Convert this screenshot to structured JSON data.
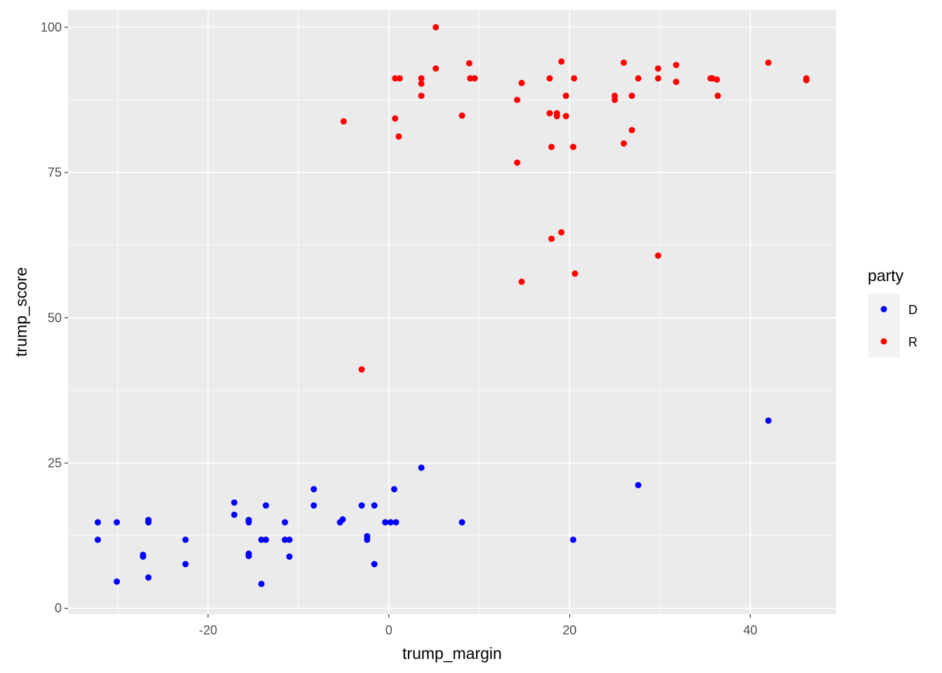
{
  "chart_data": {
    "type": "scatter",
    "xlabel": "trump_margin",
    "ylabel": "trump_score",
    "xlim": [
      -35.5,
      49.5
    ],
    "ylim": [
      -1,
      103
    ],
    "x_ticks": [
      -20,
      0,
      20,
      40
    ],
    "x_tick_labels": [
      "-20",
      "0",
      "20",
      "40"
    ],
    "y_ticks": [
      0,
      25,
      50,
      75,
      100
    ],
    "y_tick_labels": [
      "0",
      "25",
      "50",
      "75",
      "100"
    ],
    "grid": true,
    "legend": {
      "title": "party",
      "placement": "right",
      "entries": [
        {
          "label": "D",
          "color": "#0000ff"
        },
        {
          "label": "R",
          "color": "#ff0000"
        }
      ]
    },
    "colors": {
      "panel": "#ebebeb",
      "grid": "#ffffff",
      "D": "#0000ff",
      "R": "#ff0000"
    },
    "series": [
      {
        "name": "D",
        "color": "#0000ff",
        "points": [
          [
            -32.2,
            14.8
          ],
          [
            -32.2,
            11.8
          ],
          [
            -30.1,
            14.8
          ],
          [
            -30.1,
            4.6
          ],
          [
            -27.2,
            9.2
          ],
          [
            -27.2,
            8.9
          ],
          [
            -26.6,
            15.2
          ],
          [
            -26.6,
            14.8
          ],
          [
            -26.6,
            5.3
          ],
          [
            -22.5,
            11.8
          ],
          [
            -22.5,
            7.6
          ],
          [
            -17.1,
            18.2
          ],
          [
            -17.1,
            16.1
          ],
          [
            -15.5,
            15.2
          ],
          [
            -15.5,
            14.8
          ],
          [
            -15.5,
            9.4
          ],
          [
            -15.5,
            9.0
          ],
          [
            -14.1,
            11.8
          ],
          [
            -14.1,
            4.2
          ],
          [
            -13.6,
            17.7
          ],
          [
            -13.6,
            11.8
          ],
          [
            -11.5,
            14.8
          ],
          [
            -11.5,
            11.8
          ],
          [
            -11.0,
            11.8
          ],
          [
            -11.0,
            8.9
          ],
          [
            -8.3,
            20.5
          ],
          [
            -8.3,
            17.7
          ],
          [
            -5.4,
            14.8
          ],
          [
            -5.1,
            15.3
          ],
          [
            -3.0,
            17.7
          ],
          [
            -2.4,
            12.4
          ],
          [
            -2.4,
            11.8
          ],
          [
            -1.6,
            17.7
          ],
          [
            -1.6,
            7.6
          ],
          [
            -0.4,
            14.8
          ],
          [
            0.2,
            14.8
          ],
          [
            0.8,
            14.8
          ],
          [
            0.6,
            20.5
          ],
          [
            3.6,
            24.2
          ],
          [
            8.1,
            14.8
          ],
          [
            20.4,
            11.8
          ],
          [
            27.6,
            21.2
          ],
          [
            42.0,
            32.3
          ]
        ]
      },
      {
        "name": "R",
        "color": "#ff0000",
        "points": [
          [
            -5.0,
            83.8
          ],
          [
            -3.0,
            41.1
          ],
          [
            0.7,
            91.2
          ],
          [
            1.2,
            91.2
          ],
          [
            0.7,
            84.3
          ],
          [
            1.1,
            81.2
          ],
          [
            3.6,
            91.2
          ],
          [
            3.6,
            90.3
          ],
          [
            3.6,
            88.2
          ],
          [
            5.2,
            100.0
          ],
          [
            5.2,
            92.9
          ],
          [
            8.1,
            84.8
          ],
          [
            8.9,
            93.8
          ],
          [
            9.0,
            91.2
          ],
          [
            9.5,
            91.2
          ],
          [
            14.2,
            87.5
          ],
          [
            14.2,
            76.7
          ],
          [
            14.7,
            90.4
          ],
          [
            14.7,
            56.2
          ],
          [
            17.8,
            91.2
          ],
          [
            17.8,
            85.2
          ],
          [
            18.0,
            79.4
          ],
          [
            18.0,
            63.6
          ],
          [
            18.6,
            85.2
          ],
          [
            18.6,
            84.7
          ],
          [
            19.1,
            94.1
          ],
          [
            19.1,
            64.7
          ],
          [
            19.6,
            88.2
          ],
          [
            19.6,
            84.7
          ],
          [
            20.4,
            79.4
          ],
          [
            20.5,
            91.2
          ],
          [
            20.6,
            57.6
          ],
          [
            25.0,
            88.2
          ],
          [
            25.0,
            87.5
          ],
          [
            26.0,
            93.9
          ],
          [
            26.0,
            80.0
          ],
          [
            26.9,
            88.2
          ],
          [
            26.9,
            82.3
          ],
          [
            27.6,
            91.2
          ],
          [
            29.8,
            92.9
          ],
          [
            29.8,
            91.2
          ],
          [
            29.8,
            60.7
          ],
          [
            31.8,
            93.5
          ],
          [
            31.8,
            90.6
          ],
          [
            35.6,
            91.2
          ],
          [
            35.8,
            91.2
          ],
          [
            36.3,
            91.0
          ],
          [
            36.4,
            88.2
          ],
          [
            42.0,
            93.9
          ],
          [
            46.2,
            91.2
          ],
          [
            46.2,
            90.9
          ]
        ]
      }
    ]
  }
}
